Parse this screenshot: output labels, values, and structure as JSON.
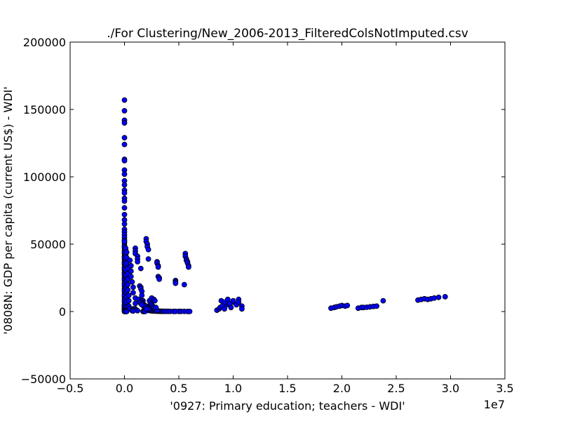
{
  "chart_data": {
    "type": "scatter",
    "title": "./For Clustering/New_2006-2013_FilteredColsNotImputed.csv",
    "xlabel": "'0927: Primary education; teachers - WDI'",
    "ylabel": "'0808N: GDP per capita  (current US$) - WDI'",
    "x_offset_label": "1e7",
    "xlim": [
      -0.5,
      3.5
    ],
    "ylim": [
      -50000,
      200000
    ],
    "xticks": [
      {
        "value": -0.5,
        "label": "−0.5"
      },
      {
        "value": 0.0,
        "label": "0.0"
      },
      {
        "value": 0.5,
        "label": "0.5"
      },
      {
        "value": 1.0,
        "label": "1.0"
      },
      {
        "value": 1.5,
        "label": "1.5"
      },
      {
        "value": 2.0,
        "label": "2.0"
      },
      {
        "value": 2.5,
        "label": "2.5"
      },
      {
        "value": 3.0,
        "label": "3.0"
      },
      {
        "value": 3.5,
        "label": "3.5"
      }
    ],
    "yticks": [
      {
        "value": -50000,
        "label": "−50000"
      },
      {
        "value": 0,
        "label": "0"
      },
      {
        "value": 50000,
        "label": "50000"
      },
      {
        "value": 100000,
        "label": "100000"
      },
      {
        "value": 150000,
        "label": "150000"
      },
      {
        "value": 200000,
        "label": "200000"
      }
    ],
    "grid": false,
    "marker_color": "#0000ff",
    "marker_edge_color": "#000000",
    "series": [
      {
        "x": [
          0.0,
          0.0,
          0.0,
          0.0,
          0.0,
          0.0,
          0.0,
          0.0,
          0.0,
          0.0,
          0.0,
          0.0,
          0.0,
          0.0,
          0.0,
          0.0,
          0.0,
          0.0,
          0.0,
          0.0,
          0.0,
          0.0,
          0.0,
          0.0,
          0.0,
          0.0,
          0.0,
          0.0,
          0.0,
          0.0,
          0.0,
          0.0,
          0.0,
          0.0,
          0.0,
          0.0,
          0.0,
          0.0,
          0.0,
          0.0,
          0.0,
          0.0,
          0.0,
          0.0,
          0.0,
          0.0,
          0.0,
          0.0,
          0.0,
          0.0,
          0.0,
          0.0,
          0.0,
          0.0,
          0.0,
          0.0,
          0.0,
          0.0,
          0.0,
          0.0,
          0.0,
          0.0,
          0.0,
          0.0,
          0.0,
          0.0,
          0.0,
          0.0,
          0.0,
          0.0,
          0.0,
          0.01,
          0.01,
          0.01,
          0.01,
          0.01,
          0.01,
          0.01,
          0.01,
          0.01,
          0.01,
          0.01,
          0.01,
          0.01,
          0.01,
          0.01,
          0.01,
          0.01,
          0.01,
          0.01,
          0.01,
          0.01,
          0.02,
          0.02,
          0.02,
          0.02,
          0.02,
          0.02,
          0.02,
          0.02,
          0.02,
          0.02,
          0.02,
          0.02,
          0.03,
          0.03,
          0.03,
          0.03,
          0.03,
          0.04,
          0.04,
          0.04,
          0.05,
          0.05,
          0.06,
          0.06,
          0.06,
          0.07,
          0.08,
          0.08,
          0.1,
          0.1,
          0.1,
          0.1,
          0.1,
          0.1,
          0.12,
          0.12,
          0.12,
          0.14,
          0.15,
          0.15,
          0.16,
          0.16,
          0.17,
          0.17,
          0.18,
          0.18,
          0.19,
          0.19,
          0.2,
          0.2,
          0.21,
          0.21,
          0.22,
          0.23,
          0.24,
          0.25,
          0.25,
          0.26,
          0.27,
          0.28,
          0.29,
          0.3,
          0.31,
          0.32,
          0.33,
          0.34,
          0.35,
          0.36,
          0.38,
          0.4,
          0.42,
          0.45,
          0.47,
          0.5,
          0.52,
          0.55,
          0.58,
          0.6,
          0.17,
          0.18,
          0.18,
          0.19,
          0.2,
          0.2,
          0.21,
          0.21,
          0.22,
          0.22,
          0.3,
          0.3,
          0.31,
          0.31,
          0.31,
          0.32,
          0.32,
          0.47,
          0.47,
          0.47,
          0.55,
          0.56,
          0.56,
          0.57,
          0.57,
          0.58,
          0.58,
          0.59,
          0.59,
          0.15,
          0.16,
          0.16,
          0.17,
          0.17,
          0.18,
          0.18,
          0.19,
          0.2,
          0.2,
          0.22,
          0.23,
          0.24,
          0.25,
          0.26,
          0.27,
          0.28,
          0.29,
          0.3,
          0.3,
          0.12,
          0.13,
          0.14,
          0.15,
          0.16,
          0.2,
          0.21,
          0.22,
          0.25,
          0.27,
          0.28,
          0.29,
          0.2,
          0.08,
          0.09,
          0.08,
          0.07,
          0.07,
          0.08,
          0.85,
          0.87,
          0.88,
          0.9,
          0.92,
          0.94,
          0.96,
          0.98,
          1.0,
          1.05,
          0.89,
          0.92,
          0.95,
          0.97,
          1.0,
          1.03,
          1.05,
          1.08,
          1.08,
          1.9,
          1.93,
          1.95,
          1.98,
          2.0,
          2.03,
          2.05,
          2.15,
          2.18,
          2.2,
          2.23,
          2.26,
          2.29,
          2.32,
          2.38,
          2.7,
          2.73,
          2.76,
          2.79,
          2.82,
          2.85,
          2.89,
          2.95
        ],
        "y": [
          157000,
          149000,
          142000,
          140000,
          129000,
          124000,
          113000,
          112000,
          105000,
          102000,
          97000,
          94000,
          90000,
          88000,
          84000,
          82000,
          77000,
          72000,
          68000,
          65000,
          61000,
          59000,
          57000,
          55000,
          53000,
          51000,
          49000,
          47000,
          45000,
          43000,
          41000,
          39000,
          37000,
          35000,
          33000,
          31000,
          29000,
          27000,
          25000,
          23000,
          21000,
          19000,
          17000,
          15000,
          13000,
          11000,
          9000,
          7000,
          5000,
          4000,
          3000,
          2000,
          1500,
          1000,
          500,
          0,
          52000,
          48000,
          44000,
          40000,
          36000,
          32000,
          28000,
          24000,
          20000,
          16000,
          12000,
          8000,
          4000,
          2000,
          500,
          46000,
          42000,
          38000,
          34000,
          30000,
          26000,
          22000,
          18000,
          14000,
          10000,
          6000,
          3000,
          1000,
          500,
          0,
          47000,
          43000,
          39000,
          35000,
          31000,
          27000,
          23000,
          19000,
          15000,
          11000,
          7000,
          3000,
          1000,
          500,
          0,
          44000,
          40000,
          36000,
          32000,
          28000,
          24000,
          20000,
          16000,
          12000,
          8000,
          4000,
          2000,
          38000,
          34000,
          30000,
          26000,
          22000,
          18000,
          14000,
          10000,
          6000,
          2000,
          47000,
          45000,
          43000,
          41000,
          39000,
          37000,
          19000,
          18000,
          17000,
          15000,
          12000,
          8000,
          6000,
          5000,
          4000,
          3000,
          2500,
          2000,
          1500,
          1200,
          1000,
          900,
          800,
          700,
          600,
          500,
          450,
          400,
          350,
          300,
          280,
          260,
          240,
          220,
          200,
          180,
          160,
          150,
          140,
          130,
          120,
          110,
          100,
          90,
          80,
          70,
          60,
          55,
          50,
          45,
          40,
          54000,
          52000,
          50000,
          48000,
          46000,
          39000,
          37000,
          36000,
          34000,
          33000,
          26000,
          25000,
          24000,
          23000,
          22000,
          21000,
          20000,
          43000,
          41000,
          39000,
          38000,
          37000,
          36000,
          34000,
          33000,
          32000,
          8000,
          7000,
          6000,
          5000,
          4000,
          3500,
          3000,
          2800,
          2600,
          2400,
          8000,
          6000,
          5000,
          4000,
          3000,
          2000,
          1500,
          1000,
          800,
          600,
          9000,
          7000,
          6000,
          5000,
          4000,
          3000,
          2000,
          10000,
          9000,
          8000,
          3000,
          2000,
          2000,
          1500,
          1000,
          800,
          600,
          400,
          1000,
          2000,
          3000,
          4000,
          2000,
          5000,
          6000,
          3000,
          7000,
          9000,
          8000,
          7000,
          9000,
          6000,
          8000,
          5000,
          7000,
          4000,
          2000,
          2500,
          3000,
          3500,
          4000,
          4500,
          4000,
          4500,
          2500,
          3000,
          3000,
          3200,
          3500,
          3800,
          4000,
          8000,
          8500,
          9000,
          9500,
          9000,
          9500,
          10000,
          10500,
          11000
        ]
      }
    ]
  }
}
